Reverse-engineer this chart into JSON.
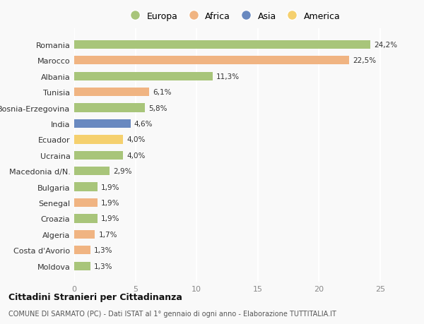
{
  "countries": [
    "Romania",
    "Marocco",
    "Albania",
    "Tunisia",
    "Bosnia-Erzegovina",
    "India",
    "Ecuador",
    "Ucraina",
    "Macedonia d/N.",
    "Bulgaria",
    "Senegal",
    "Croazia",
    "Algeria",
    "Costa d'Avorio",
    "Moldova"
  ],
  "values": [
    24.2,
    22.5,
    11.3,
    6.1,
    5.8,
    4.6,
    4.0,
    4.0,
    2.9,
    1.9,
    1.9,
    1.9,
    1.7,
    1.3,
    1.3
  ],
  "labels": [
    "24,2%",
    "22,5%",
    "11,3%",
    "6,1%",
    "5,8%",
    "4,6%",
    "4,0%",
    "4,0%",
    "2,9%",
    "1,9%",
    "1,9%",
    "1,9%",
    "1,7%",
    "1,3%",
    "1,3%"
  ],
  "colors": [
    "#a8c57a",
    "#f0b482",
    "#a8c57a",
    "#f0b482",
    "#a8c57a",
    "#6989c0",
    "#f5d06e",
    "#a8c57a",
    "#a8c57a",
    "#a8c57a",
    "#f0b482",
    "#a8c57a",
    "#f0b482",
    "#f0b482",
    "#a8c57a"
  ],
  "legend_labels": [
    "Europa",
    "Africa",
    "Asia",
    "America"
  ],
  "legend_colors": [
    "#a8c57a",
    "#f0b482",
    "#6989c0",
    "#f5d06e"
  ],
  "title": "Cittadini Stranieri per Cittadinanza",
  "subtitle": "COMUNE DI SARMATO (PC) - Dati ISTAT al 1° gennaio di ogni anno - Elaborazione TUTTITALIA.IT",
  "xlim": [
    0,
    26
  ],
  "background_color": "#f9f9f9",
  "grid_color": "#ffffff",
  "bar_height": 0.55
}
